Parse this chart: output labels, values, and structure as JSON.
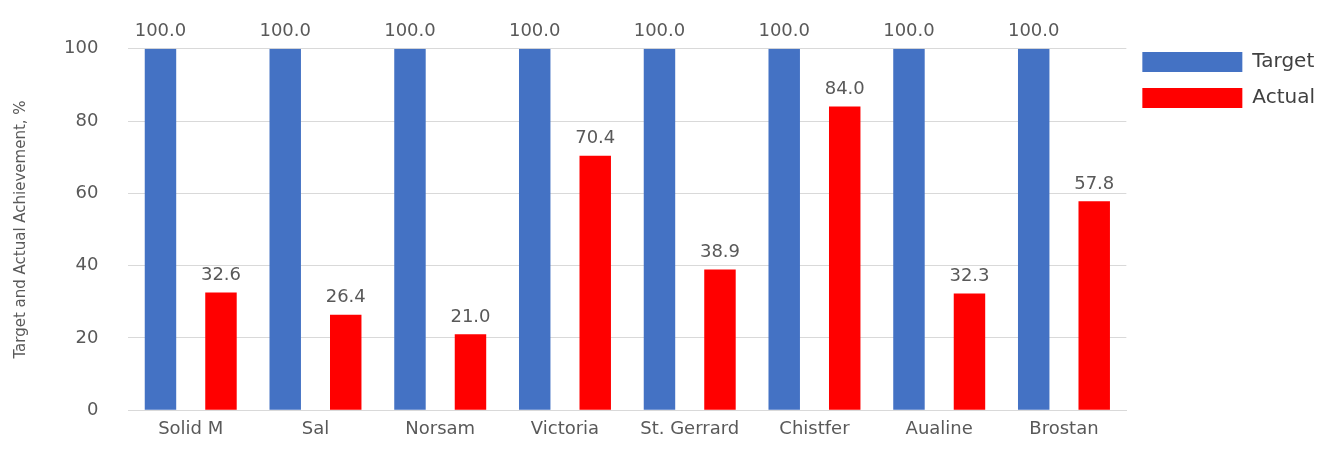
{
  "chart_data": {
    "type": "bar",
    "ylabel": "Target and Actual Achievement, %",
    "categories": [
      "Solid M",
      "Sal",
      "Norsam",
      "Victoria",
      "St. Gerrard",
      "Chistfer",
      "Aualine",
      "Brostan"
    ],
    "series": [
      {
        "name": "Target",
        "color": "#4472c4",
        "values": [
          100,
          100,
          100,
          100,
          100,
          100,
          100,
          100
        ],
        "value_labels": [
          "100.0",
          "100.0",
          "100.0",
          "100.0",
          "100.0",
          "100.0",
          "100.0",
          "100.0"
        ]
      },
      {
        "name": "Actual",
        "color": "#ff0000",
        "values": [
          32.6,
          26.4,
          21.0,
          70.4,
          38.9,
          84.0,
          32.3,
          57.8
        ],
        "value_labels": [
          "32.6",
          "26.4",
          "21.0",
          "70.4",
          "38.9",
          "84.0",
          "32.3",
          "57.8"
        ]
      }
    ],
    "ylim": [
      0,
      100
    ],
    "yticks": [
      0,
      20,
      40,
      60,
      80,
      100
    ],
    "grid": "y",
    "legend": "top right"
  }
}
